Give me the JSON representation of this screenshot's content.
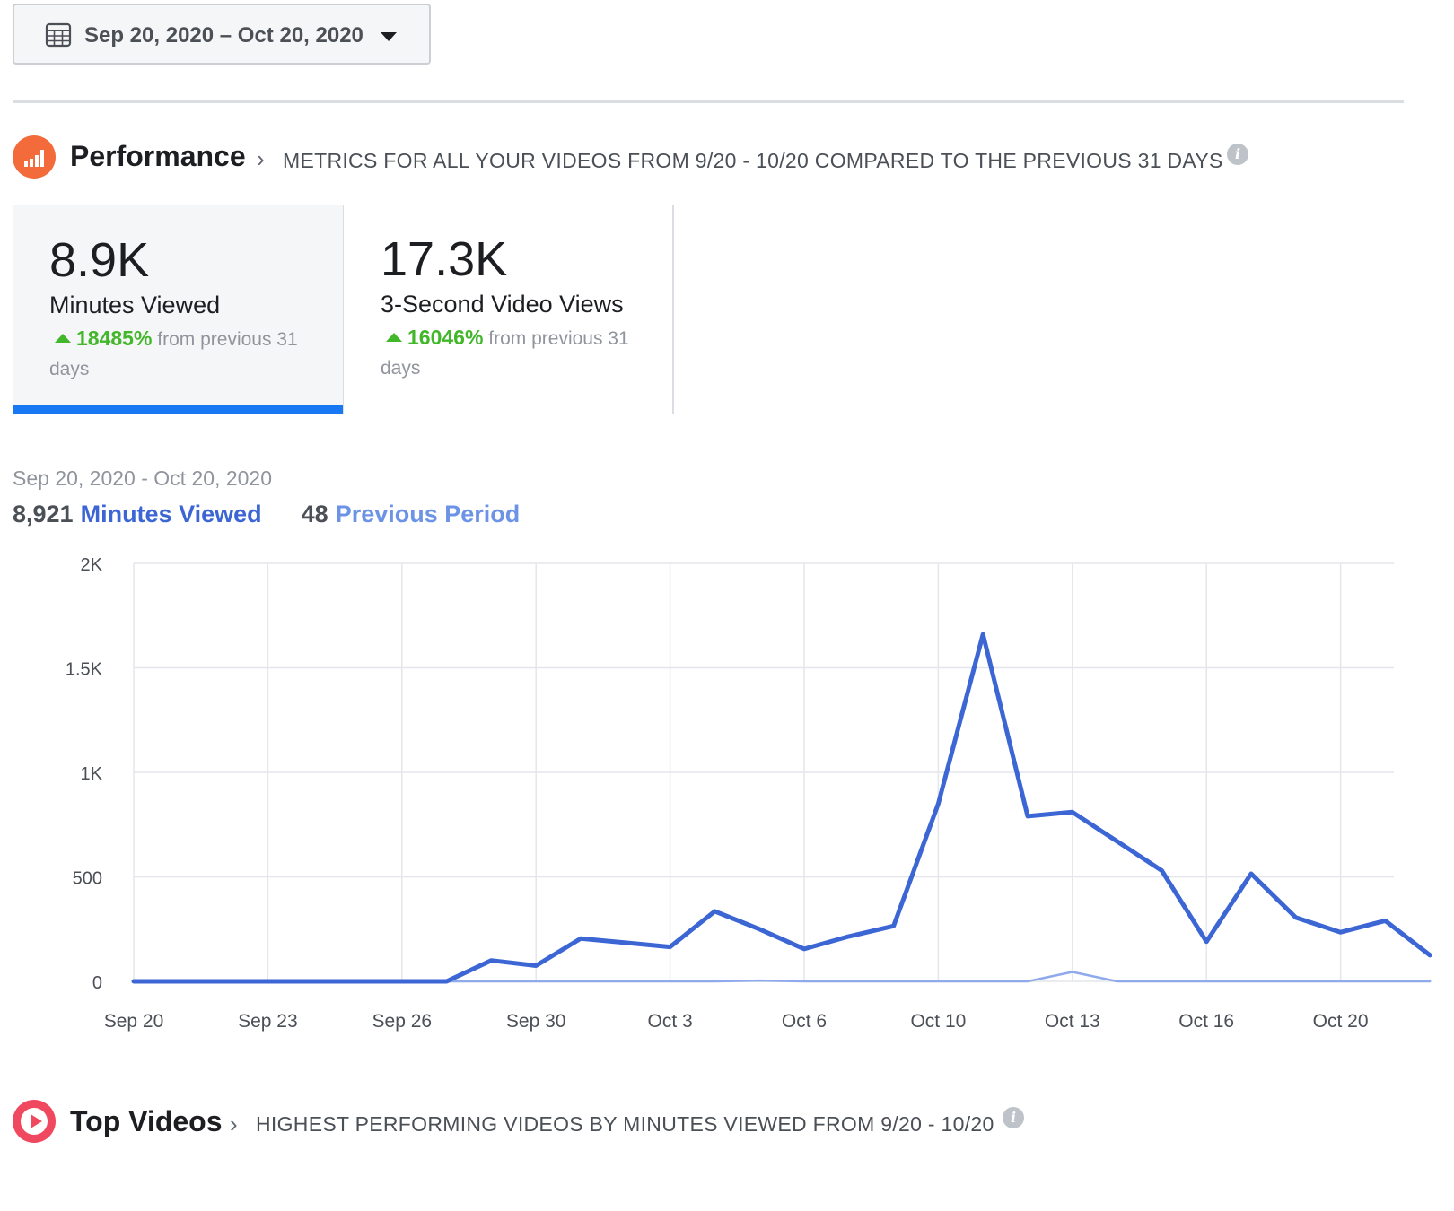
{
  "date_picker": {
    "label": "Sep 20, 2020 – Oct 20, 2020",
    "icon": "calendar-icon"
  },
  "performance": {
    "title": "Performance",
    "subtitle": "METRICS FOR ALL YOUR VIDEOS FROM 9/20 - 10/20 COMPARED TO THE PREVIOUS 31 DAYS",
    "icon": "bar-chart-icon",
    "icon_color": "#f36b3b"
  },
  "metrics": [
    {
      "value": "8.9K",
      "label": "Minutes Viewed",
      "change": "18485%",
      "suffix": "from previous 31 days",
      "selected": true
    },
    {
      "value": "17.3K",
      "label": "3-Second Video Views",
      "change": "16046%",
      "suffix": "from previous 31 days",
      "selected": false
    }
  ],
  "chart_summary": {
    "range": "Sep 20, 2020 - Oct 20, 2020",
    "current_total": "8,921",
    "current_label": "Minutes Viewed",
    "previous_total": "48",
    "previous_label": "Previous Period"
  },
  "chart_data": {
    "type": "line",
    "x_labels": [
      "Sep 20",
      "Sep 23",
      "Sep 26",
      "Sep 30",
      "Oct 3",
      "Oct 6",
      "Oct 10",
      "Oct 13",
      "Oct 16",
      "Oct 20"
    ],
    "x_label_days": [
      0,
      3,
      6,
      9,
      12,
      15,
      18,
      21,
      24,
      27
    ],
    "ylim": [
      0,
      2000
    ],
    "yticks": [
      0,
      500,
      1000,
      1500,
      2000
    ],
    "ytick_labels": [
      "0",
      "500",
      "1K",
      "1.5K",
      "2K"
    ],
    "grid": true,
    "series": [
      {
        "name": "Minutes Viewed",
        "color": "#3b66d4",
        "values": [
          0,
          0,
          0,
          0,
          0,
          0,
          0,
          0,
          100,
          75,
          205,
          185,
          165,
          335,
          250,
          155,
          215,
          265,
          850,
          1660,
          790,
          810,
          670,
          530,
          190,
          515,
          305,
          235,
          290,
          125
        ]
      },
      {
        "name": "Previous Period",
        "color": "#8ea9ec",
        "values": [
          0,
          0,
          0,
          0,
          0,
          0,
          0,
          0,
          0,
          0,
          0,
          0,
          0,
          0,
          4,
          0,
          0,
          0,
          0,
          0,
          0,
          45,
          0,
          0,
          0,
          0,
          0,
          0,
          0,
          0
        ]
      }
    ]
  },
  "top_videos": {
    "title": "Top Videos",
    "subtitle": "HIGHEST PERFORMING VIDEOS BY MINUTES VIEWED FROM 9/20 - 10/20",
    "icon": "play-icon",
    "icon_color": "#f0495f"
  }
}
